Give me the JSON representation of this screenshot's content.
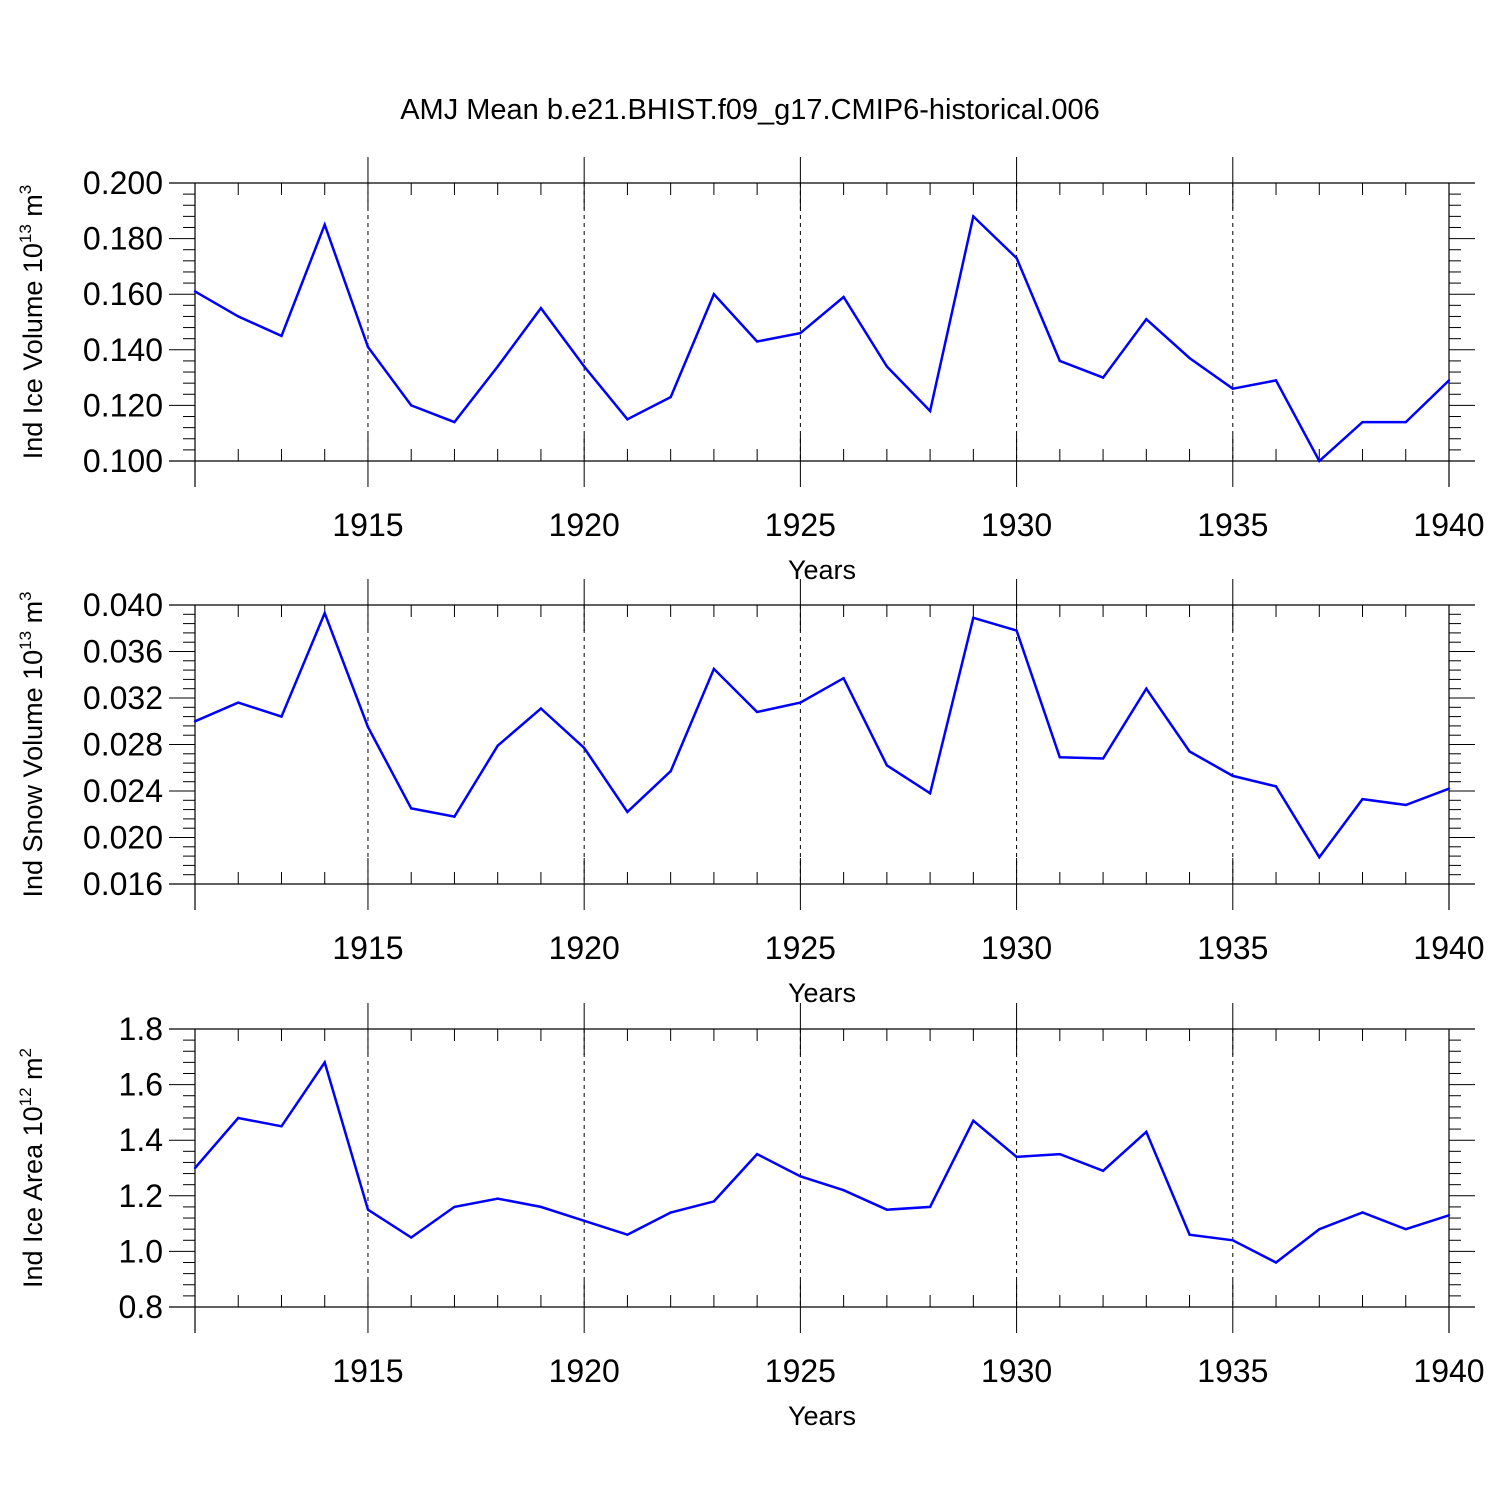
{
  "chart_data": {
    "type": "line",
    "title": "AMJ Mean b.e21.BHIST.f09_g17.CMIP6-historical.006",
    "line_color": "#0000ff",
    "panels": [
      {
        "ylabel": "Ind Ice Volume 10",
        "ylabel_exp": "13",
        "ylabel_unit": " m",
        "ylabel_unit_exp": "3",
        "xlabel": "Years",
        "ylim": [
          0.1,
          0.2
        ],
        "yticks": [
          "0.200",
          "0.180",
          "0.160",
          "0.140",
          "0.120",
          "0.100"
        ],
        "ytick_values": [
          0.2,
          0.18,
          0.16,
          0.14,
          0.12,
          0.1
        ],
        "xlim": [
          1911,
          1940
        ],
        "xticks": [
          "1915",
          "1920",
          "1925",
          "1930",
          "1935",
          "1940"
        ],
        "xtick_values": [
          1915,
          1920,
          1925,
          1930,
          1935,
          1940
        ],
        "x": [
          1911,
          1912,
          1913,
          1914,
          1915,
          1916,
          1917,
          1918,
          1919,
          1920,
          1921,
          1922,
          1923,
          1924,
          1925,
          1926,
          1927,
          1928,
          1929,
          1930,
          1931,
          1932,
          1933,
          1934,
          1935,
          1936,
          1937,
          1938,
          1939,
          1940
        ],
        "values": [
          0.161,
          0.152,
          0.145,
          0.185,
          0.141,
          0.12,
          0.114,
          0.134,
          0.155,
          0.134,
          0.115,
          0.123,
          0.16,
          0.143,
          0.146,
          0.159,
          0.134,
          0.118,
          0.188,
          0.173,
          0.136,
          0.13,
          0.151,
          0.137,
          0.126,
          0.129,
          0.1,
          0.114,
          0.114,
          0.129
        ]
      },
      {
        "ylabel": "Ind Snow Volume 10",
        "ylabel_exp": "13",
        "ylabel_unit": " m",
        "ylabel_unit_exp": "3",
        "xlabel": "Years",
        "ylim": [
          0.016,
          0.04
        ],
        "yticks": [
          "0.040",
          "0.036",
          "0.032",
          "0.028",
          "0.024",
          "0.020",
          "0.016"
        ],
        "ytick_values": [
          0.04,
          0.036,
          0.032,
          0.028,
          0.024,
          0.02,
          0.016
        ],
        "xlim": [
          1911,
          1940
        ],
        "xticks": [
          "1915",
          "1920",
          "1925",
          "1930",
          "1935",
          "1940"
        ],
        "xtick_values": [
          1915,
          1920,
          1925,
          1930,
          1935,
          1940
        ],
        "x": [
          1911,
          1912,
          1913,
          1914,
          1915,
          1916,
          1917,
          1918,
          1919,
          1920,
          1921,
          1922,
          1923,
          1924,
          1925,
          1926,
          1927,
          1928,
          1929,
          1930,
          1931,
          1932,
          1933,
          1934,
          1935,
          1936,
          1937,
          1938,
          1939,
          1940
        ],
        "values": [
          0.03,
          0.0316,
          0.0304,
          0.0393,
          0.0295,
          0.0225,
          0.0218,
          0.0279,
          0.0311,
          0.0277,
          0.0222,
          0.0257,
          0.0345,
          0.0308,
          0.0316,
          0.0337,
          0.0262,
          0.0238,
          0.0389,
          0.0378,
          0.0269,
          0.0268,
          0.0328,
          0.0274,
          0.0253,
          0.0244,
          0.0183,
          0.0233,
          0.0228,
          0.0242
        ]
      },
      {
        "ylabel": "Ind Ice Area 10",
        "ylabel_exp": "12",
        "ylabel_unit": " m",
        "ylabel_unit_exp": "2",
        "xlabel": "Years",
        "ylim": [
          0.8,
          1.8
        ],
        "yticks": [
          "1.8",
          "1.6",
          "1.4",
          "1.2",
          "1.0",
          "0.8"
        ],
        "ytick_values": [
          1.8,
          1.6,
          1.4,
          1.2,
          1.0,
          0.8
        ],
        "xlim": [
          1911,
          1940
        ],
        "xticks": [
          "1915",
          "1920",
          "1925",
          "1930",
          "1935",
          "1940"
        ],
        "xtick_values": [
          1915,
          1920,
          1925,
          1930,
          1935,
          1940
        ],
        "x": [
          1911,
          1912,
          1913,
          1914,
          1915,
          1916,
          1917,
          1918,
          1919,
          1920,
          1921,
          1922,
          1923,
          1924,
          1925,
          1926,
          1927,
          1928,
          1929,
          1930,
          1931,
          1932,
          1933,
          1934,
          1935,
          1936,
          1937,
          1938,
          1939,
          1940
        ],
        "values": [
          1.3,
          1.48,
          1.45,
          1.68,
          1.15,
          1.05,
          1.16,
          1.19,
          1.16,
          1.11,
          1.06,
          1.14,
          1.18,
          1.35,
          1.27,
          1.22,
          1.15,
          1.16,
          1.47,
          1.34,
          1.35,
          1.29,
          1.43,
          1.06,
          1.04,
          0.96,
          1.08,
          1.14,
          1.08,
          1.13
        ]
      }
    ]
  }
}
